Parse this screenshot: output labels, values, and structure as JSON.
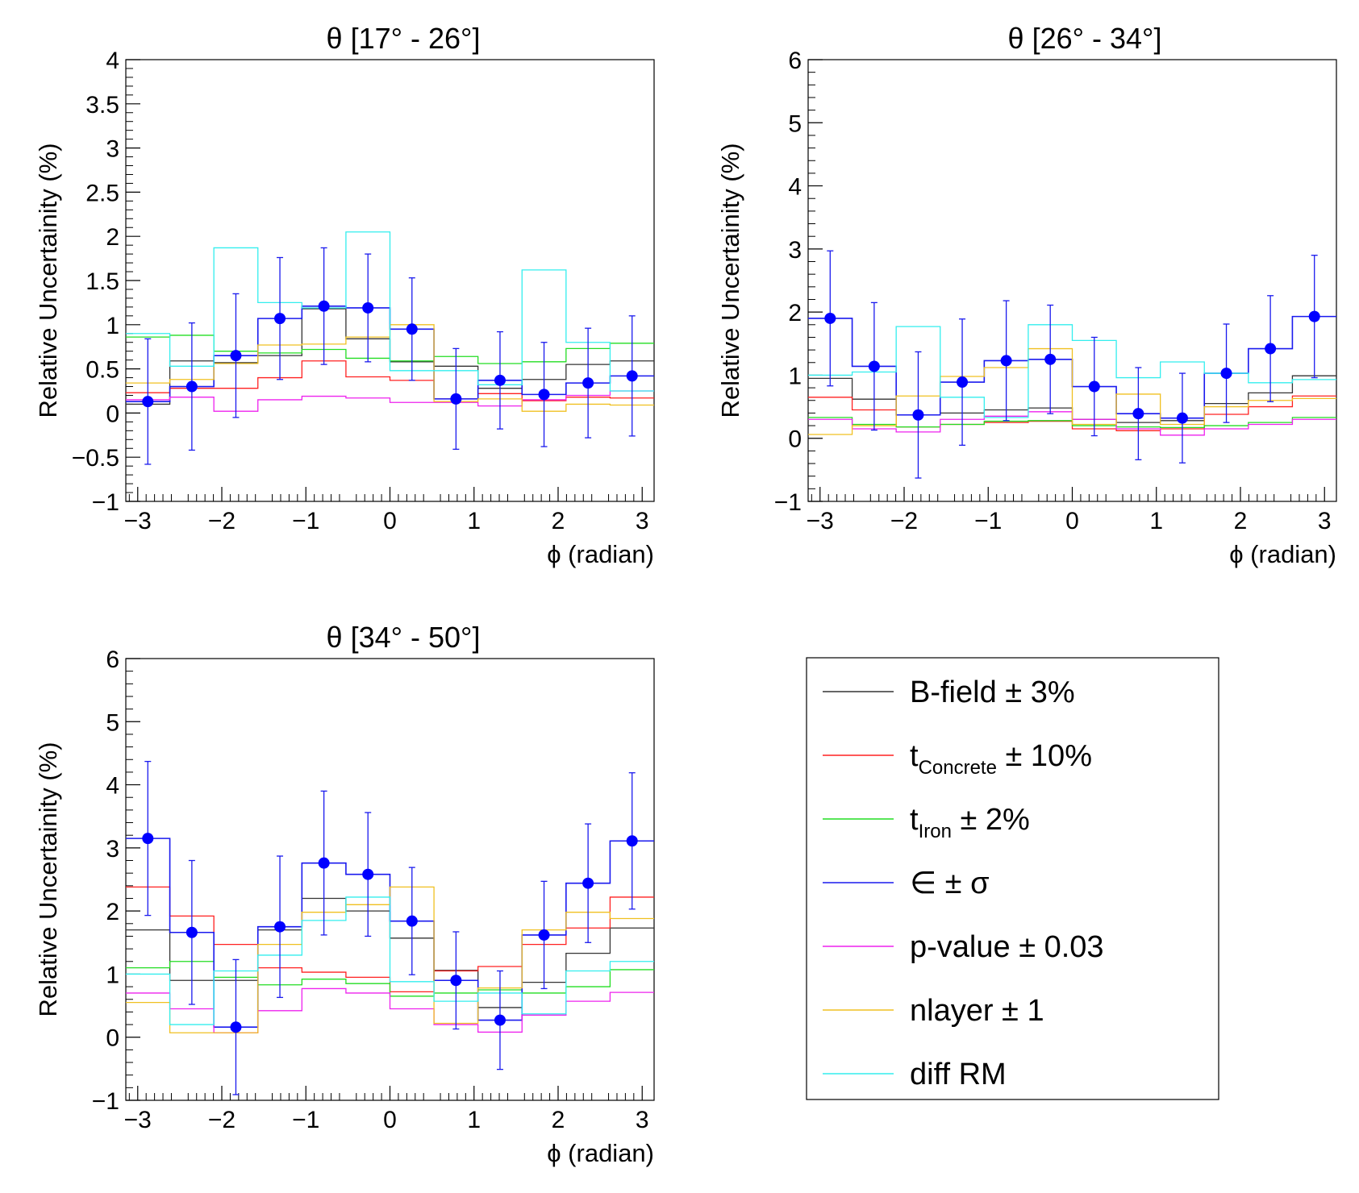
{
  "chart_data": [
    {
      "type": "histogram",
      "title": "θ [17° - 26°]",
      "xlabel": "ϕ (radian)",
      "ylabel": "Relative Uncertainity (%)",
      "xlim": [
        -3.14159,
        3.14159
      ],
      "ylim": [
        -1,
        4
      ],
      "xticks": [
        -3,
        -2,
        -1,
        0,
        1,
        2,
        3
      ],
      "yticks": [
        -1,
        -0.5,
        0,
        0.5,
        1,
        1.5,
        2,
        2.5,
        3,
        3.5,
        4
      ],
      "ytick_labels": [
        "−1",
        "−0.5",
        "0",
        "0.5",
        "1",
        "1.5",
        "2",
        "2.5",
        "3",
        "3.5",
        "4"
      ],
      "xtick_labels": [
        "−3",
        "−2",
        "−1",
        "0",
        "1",
        "2",
        "3"
      ],
      "series": [
        {
          "key": "bfield",
          "values": [
            0.1,
            0.59,
            0.57,
            0.65,
            1.18,
            0.84,
            0.58,
            0.53,
            0.28,
            0.38,
            0.55,
            0.59
          ]
        },
        {
          "key": "tconc",
          "values": [
            0.23,
            0.28,
            0.28,
            0.4,
            0.59,
            0.41,
            0.37,
            0.16,
            0.22,
            0.14,
            0.18,
            0.17
          ]
        },
        {
          "key": "tiron",
          "values": [
            0.86,
            0.88,
            0.7,
            0.68,
            0.72,
            0.62,
            0.59,
            0.64,
            0.56,
            0.58,
            0.73,
            0.79
          ]
        },
        {
          "key": "eps",
          "values": [
            0.13,
            0.3,
            0.65,
            1.07,
            1.21,
            1.19,
            0.95,
            0.16,
            0.37,
            0.21,
            0.34,
            0.42
          ]
        },
        {
          "key": "pval",
          "values": [
            0.15,
            0.18,
            0.02,
            0.15,
            0.19,
            0.17,
            0.12,
            0.12,
            0.08,
            0.15,
            0.2,
            0.25
          ]
        },
        {
          "key": "nlayer",
          "values": [
            0.34,
            0.38,
            0.56,
            0.77,
            0.78,
            0.86,
            1.0,
            0.13,
            0.16,
            0.02,
            0.1,
            0.09
          ]
        },
        {
          "key": "diffrm",
          "values": [
            0.9,
            0.53,
            1.87,
            1.25,
            1.19,
            2.05,
            0.48,
            0.48,
            0.32,
            1.62,
            0.8,
            0.25
          ]
        }
      ],
      "error_bars": [
        0.71,
        0.72,
        0.7,
        0.69,
        0.66,
        0.61,
        0.58,
        0.57,
        0.55,
        0.59,
        0.62,
        0.68
      ]
    },
    {
      "type": "histogram",
      "title": "θ [26° - 34°]",
      "xlabel": "ϕ (radian)",
      "ylabel": "Relative Uncertainity (%)",
      "xlim": [
        -3.14159,
        3.14159
      ],
      "ylim": [
        -1,
        6
      ],
      "xticks": [
        -3,
        -2,
        -1,
        0,
        1,
        2,
        3
      ],
      "yticks": [
        -1,
        0,
        1,
        2,
        3,
        4,
        5,
        6
      ],
      "ytick_labels": [
        "−1",
        "0",
        "1",
        "2",
        "3",
        "4",
        "5",
        "6"
      ],
      "xtick_labels": [
        "−3",
        "−2",
        "−1",
        "0",
        "1",
        "2",
        "3"
      ],
      "series": [
        {
          "key": "bfield",
          "values": [
            0.95,
            0.62,
            0.37,
            0.4,
            0.45,
            0.48,
            0.3,
            0.25,
            0.28,
            0.55,
            0.72,
            0.99
          ]
        },
        {
          "key": "tconc",
          "values": [
            0.65,
            0.45,
            0.18,
            0.22,
            0.25,
            0.27,
            0.15,
            0.12,
            0.15,
            0.38,
            0.5,
            0.67
          ]
        },
        {
          "key": "tiron",
          "values": [
            0.33,
            0.22,
            0.18,
            0.22,
            0.27,
            0.28,
            0.2,
            0.18,
            0.17,
            0.2,
            0.25,
            0.33
          ]
        },
        {
          "key": "eps",
          "values": [
            1.9,
            1.14,
            0.37,
            0.89,
            1.23,
            1.25,
            0.82,
            0.39,
            0.32,
            1.03,
            1.42,
            1.93
          ]
        },
        {
          "key": "pval",
          "values": [
            0.3,
            0.15,
            0.1,
            0.3,
            0.35,
            0.42,
            0.3,
            0.15,
            0.05,
            0.15,
            0.22,
            0.3
          ]
        },
        {
          "key": "nlayer",
          "values": [
            0.06,
            0.2,
            0.67,
            0.98,
            1.12,
            1.42,
            0.22,
            0.7,
            0.22,
            0.5,
            0.6,
            0.63
          ]
        },
        {
          "key": "diffrm",
          "values": [
            1.0,
            1.05,
            1.77,
            0.65,
            0.33,
            1.8,
            1.55,
            0.96,
            1.21,
            1.03,
            0.88,
            0.93
          ]
        }
      ],
      "error_bars": [
        1.07,
        1.01,
        1.0,
        1.0,
        0.95,
        0.86,
        0.78,
        0.73,
        0.71,
        0.78,
        0.84,
        0.97
      ]
    },
    {
      "type": "histogram",
      "title": "θ [34° - 50°]",
      "xlabel": "ϕ (radian)",
      "ylabel": "Relative Uncertainity (%)",
      "xlim": [
        -3.14159,
        3.14159
      ],
      "ylim": [
        -1,
        6
      ],
      "xticks": [
        -3,
        -2,
        -1,
        0,
        1,
        2,
        3
      ],
      "yticks": [
        -1,
        0,
        1,
        2,
        3,
        4,
        5,
        6
      ],
      "ytick_labels": [
        "−1",
        "0",
        "1",
        "2",
        "3",
        "4",
        "5",
        "6"
      ],
      "xtick_labels": [
        "−3",
        "−2",
        "−1",
        "0",
        "1",
        "2",
        "3"
      ],
      "series": [
        {
          "key": "bfield",
          "values": [
            1.7,
            0.9,
            0.9,
            1.7,
            2.2,
            2.0,
            1.57,
            1.06,
            0.47,
            0.87,
            1.33,
            1.73
          ]
        },
        {
          "key": "tconc",
          "values": [
            2.38,
            1.92,
            1.47,
            1.1,
            1.03,
            0.95,
            0.72,
            1.05,
            1.12,
            1.47,
            1.73,
            2.22
          ]
        },
        {
          "key": "tiron",
          "values": [
            1.1,
            1.2,
            0.95,
            0.83,
            0.92,
            0.85,
            0.65,
            0.7,
            0.75,
            0.7,
            0.8,
            1.07
          ]
        },
        {
          "key": "eps",
          "values": [
            3.15,
            1.66,
            0.16,
            1.75,
            2.76,
            2.58,
            1.84,
            0.9,
            0.27,
            1.62,
            2.44,
            3.11
          ]
        },
        {
          "key": "pval",
          "values": [
            0.7,
            0.45,
            0.07,
            0.42,
            0.77,
            0.7,
            0.45,
            0.2,
            0.08,
            0.35,
            0.57,
            0.71
          ]
        },
        {
          "key": "nlayer",
          "values": [
            0.55,
            0.07,
            0.07,
            1.47,
            1.98,
            2.1,
            2.38,
            0.22,
            0.78,
            1.7,
            1.98,
            1.88
          ]
        },
        {
          "key": "diffrm",
          "values": [
            1.0,
            0.2,
            1.05,
            1.3,
            1.85,
            2.22,
            0.88,
            0.57,
            0.7,
            0.37,
            1.05,
            1.2
          ]
        }
      ],
      "error_bars": [
        1.22,
        1.14,
        1.07,
        1.12,
        1.14,
        0.98,
        0.85,
        0.77,
        0.78,
        0.85,
        0.94,
        1.08
      ]
    }
  ],
  "legend": {
    "items": [
      {
        "key": "bfield",
        "label": "B-field",
        "sub": "",
        "suffix": " ± 3%"
      },
      {
        "key": "tconc",
        "label": "t",
        "sub": "Concrete",
        "suffix": " ± 10%"
      },
      {
        "key": "tiron",
        "label": "t",
        "sub": "Iron",
        "suffix": " ± 2%"
      },
      {
        "key": "eps",
        "label": "∈",
        "sub": "",
        "suffix": " ± σ"
      },
      {
        "key": "pval",
        "label": "p-value",
        "sub": "",
        "suffix": " ± 0.03"
      },
      {
        "key": "nlayer",
        "label": "nlayer",
        "sub": "",
        "suffix": " ± 1"
      },
      {
        "key": "diffrm",
        "label": "diff RM",
        "sub": "",
        "suffix": ""
      }
    ]
  },
  "colors": {
    "bfield": "#333333",
    "tconc": "#ff2020",
    "tiron": "#22dd22",
    "eps": "#1a1aee",
    "pval": "#ee22ee",
    "nlayer": "#f0c020",
    "diffrm": "#33eeee",
    "marker": "#0000ff"
  }
}
